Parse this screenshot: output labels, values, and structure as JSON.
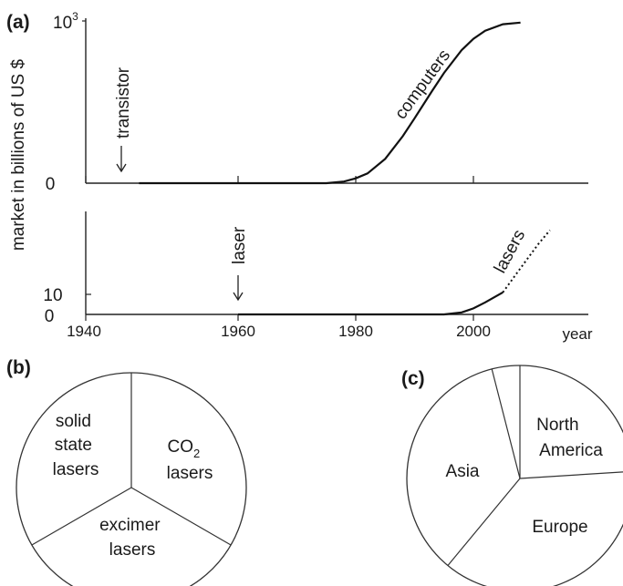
{
  "panel_labels": {
    "a": "(a)",
    "b": "(b)",
    "c": "(c)"
  },
  "chart_data": [
    {
      "type": "line",
      "panel": "(a) upper",
      "ylabel": "market in billions of US $",
      "yticks": [
        "0",
        "10"
      ],
      "yticks_sup": [
        "",
        "3"
      ],
      "xlim": [
        1940,
        2010
      ],
      "ylim": [
        0,
        1000
      ],
      "series": [
        {
          "name": "computers",
          "x": [
            1947,
            1960,
            1970,
            1975,
            1978,
            1980,
            1982,
            1985,
            1988,
            1990,
            1993,
            1995,
            1998,
            2000,
            2002,
            2005,
            2008
          ],
          "y": [
            0,
            0,
            0,
            0,
            10,
            30,
            60,
            150,
            290,
            400,
            570,
            680,
            820,
            890,
            940,
            980,
            990
          ]
        }
      ],
      "annotations": [
        {
          "text": "transistor",
          "x": 1948
        }
      ]
    },
    {
      "type": "line",
      "panel": "(a) lower",
      "xlabel": "year",
      "xticks": [
        "1940",
        "1960",
        "1980",
        "2000"
      ],
      "yticks": [
        "0",
        "10"
      ],
      "xlim": [
        1940,
        2010
      ],
      "ylim": [
        0,
        45
      ],
      "series": [
        {
          "name": "lasers",
          "x": [
            1960,
            1980,
            1990,
            1995,
            1998,
            2000,
            2002,
            2005
          ],
          "y": [
            0,
            0,
            0,
            0,
            1,
            3,
            6,
            11
          ],
          "projected_x": [
            2005,
            2007,
            2009,
            2011,
            2013
          ],
          "projected_y": [
            11,
            19,
            27,
            35,
            42
          ]
        }
      ],
      "annotations": [
        {
          "text": "laser",
          "x": 1960
        }
      ]
    },
    {
      "type": "pie",
      "panel": "(b)",
      "slices": [
        {
          "label": "solid state lasers",
          "lines": [
            "solid",
            "state",
            "lasers"
          ],
          "value": 33.3
        },
        {
          "label": "CO2 lasers",
          "lines": [
            "CO",
            "lasers"
          ],
          "sub": "2",
          "value": 33.3
        },
        {
          "label": "excimer lasers",
          "lines": [
            "excimer",
            "lasers"
          ],
          "value": 33.3
        }
      ]
    },
    {
      "type": "pie",
      "panel": "(c)",
      "slices": [
        {
          "label": "North America",
          "lines": [
            "North",
            "America"
          ],
          "value": 24
        },
        {
          "label": "Europe",
          "lines": [
            "Europe"
          ],
          "value": 37
        },
        {
          "label": "Asia",
          "lines": [
            "Asia"
          ],
          "value": 35
        },
        {
          "label": "",
          "lines": [],
          "value": 4
        }
      ]
    }
  ]
}
